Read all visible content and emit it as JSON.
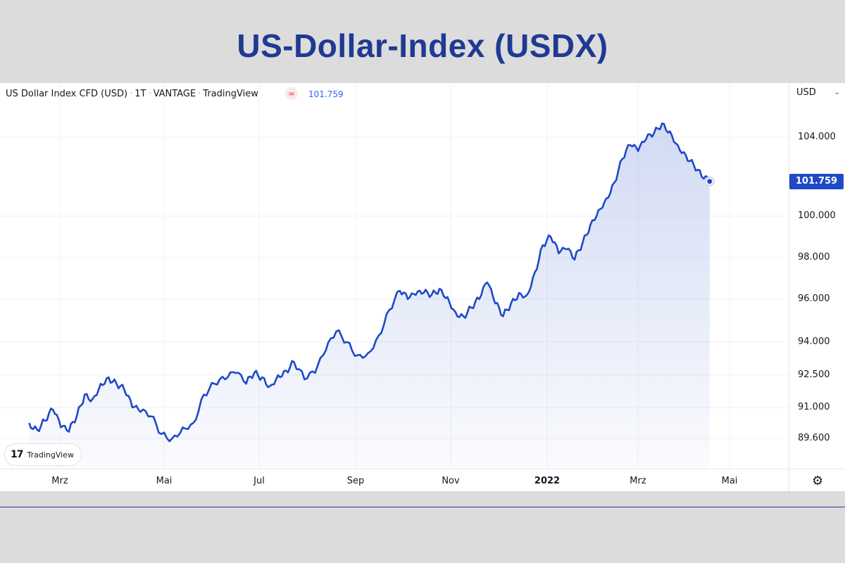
{
  "slide": {
    "title": "US-Dollar-Index (USDX)"
  },
  "legend": {
    "symbol": "US Dollar Index CFD (USD)",
    "interval": "1T",
    "exchange": "VANTAGE",
    "source": "TradingView",
    "badge_icon": "≈",
    "last_value": "101.759"
  },
  "price_axis": {
    "currency": "USD",
    "caret": "⌄",
    "ticks": [
      "104.000",
      "100.000",
      "98.000",
      "96.000",
      "94.000",
      "92.500",
      "91.000",
      "89.600"
    ],
    "last_badge": "101.759"
  },
  "time_axis": {
    "labels": [
      {
        "text": "Mrz",
        "bold": false
      },
      {
        "text": "Mai",
        "bold": false
      },
      {
        "text": "Jul",
        "bold": false
      },
      {
        "text": "Sep",
        "bold": false
      },
      {
        "text": "Nov",
        "bold": false
      },
      {
        "text": "2022",
        "bold": true
      },
      {
        "text": "Mrz",
        "bold": false
      },
      {
        "text": "Mai",
        "bold": false
      }
    ]
  },
  "logo": {
    "text": "TradingView",
    "mark": "17"
  },
  "colors": {
    "line": "#1e49c7",
    "title": "#1f3a93",
    "badge": "#1e49c7",
    "legend_value": "#2962ff"
  },
  "chart_data": {
    "type": "area",
    "title": "US-Dollar-Index (USDX)",
    "series": [
      {
        "name": "US Dollar Index CFD (USD)",
        "x_months": [
          2.0,
          2.15,
          2.3,
          2.45,
          2.6,
          2.75,
          2.9,
          3.05,
          3.2,
          3.35,
          3.5,
          3.65,
          3.8,
          3.95,
          4.1,
          4.3,
          4.5,
          4.7,
          4.9,
          5.1,
          5.3,
          5.5,
          5.7,
          5.9,
          6.1,
          6.25,
          6.4,
          6.55,
          6.7,
          6.85,
          7.0,
          7.2,
          7.4,
          7.6,
          7.8,
          8.0,
          8.2,
          8.4,
          8.6,
          8.8,
          9.0,
          9.15,
          9.3,
          9.45,
          9.6,
          9.75,
          9.9,
          10.05,
          10.2,
          10.35,
          10.5,
          10.65,
          10.8,
          10.95,
          11.1,
          11.25,
          11.4,
          11.55,
          11.7,
          11.85,
          12.0,
          12.15,
          12.3,
          12.45,
          12.6,
          12.75,
          12.9,
          13.05,
          13.2,
          13.35,
          13.5,
          13.65,
          13.8,
          13.95,
          14.1,
          14.25,
          14.4,
          14.55,
          14.7,
          14.85,
          15.0,
          15.15,
          15.25,
          15.35,
          15.45,
          15.55,
          15.65,
          15.75
        ],
        "values": [
          90.3,
          90.0,
          90.4,
          90.9,
          90.1,
          89.9,
          90.6,
          91.6,
          91.4,
          92.1,
          92.4,
          92.1,
          91.8,
          91.0,
          90.8,
          90.6,
          89.8,
          89.6,
          90.1,
          90.3,
          91.6,
          92.1,
          92.3,
          92.6,
          92.1,
          92.6,
          92.4,
          92.0,
          92.5,
          92.7,
          93.1,
          92.3,
          92.6,
          93.6,
          94.5,
          94.0,
          93.4,
          93.5,
          94.3,
          95.5,
          96.4,
          96.0,
          96.2,
          96.3,
          96.2,
          96.5,
          96.1,
          95.4,
          95.2,
          95.6,
          96.0,
          96.8,
          95.8,
          95.2,
          95.8,
          96.3,
          96.2,
          97.3,
          98.6,
          99.0,
          98.2,
          98.4,
          97.9,
          98.7,
          99.6,
          100.3,
          100.9,
          101.7,
          102.9,
          103.6,
          103.3,
          103.9,
          104.2,
          104.7,
          104.3,
          103.6,
          103.1,
          102.6,
          102.0,
          101.759,
          101.9,
          101.759,
          101.759,
          101.759,
          101.759,
          101.759,
          101.759,
          101.759
        ]
      }
    ],
    "x_unit": "months since Jan 2021",
    "y_ticks": [
      89.6,
      91.0,
      92.5,
      94.0,
      96.0,
      98.0,
      100.0,
      104.0
    ],
    "ylim": [
      88.8,
      105.4
    ],
    "x_tick_labels": [
      "Mrz",
      "Mai",
      "Jul",
      "Sep",
      "Nov",
      "2022",
      "Mrz",
      "Mai"
    ],
    "last_value": 101.759,
    "grid": true
  }
}
